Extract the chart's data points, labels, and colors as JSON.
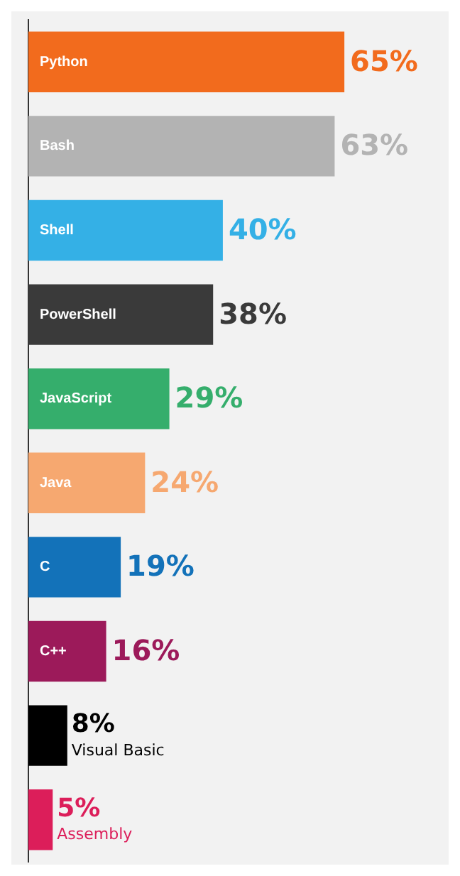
{
  "chart_data": {
    "type": "bar",
    "orientation": "horizontal",
    "categories": [
      "Python",
      "Bash",
      "Shell",
      "PowerShell",
      "JavaScript",
      "Java",
      "C",
      "C++",
      "Visual Basic",
      "Assembly"
    ],
    "values": [
      65,
      63,
      40,
      38,
      29,
      24,
      19,
      16,
      8,
      5
    ],
    "value_labels": [
      "65%",
      "63%",
      "40%",
      "38%",
      "29%",
      "24%",
      "19%",
      "16%",
      "8%",
      "5%"
    ],
    "colors": [
      "#f26b1d",
      "#b3b3b3",
      "#34b0e6",
      "#3a3a3a",
      "#35ae6c",
      "#f6a870",
      "#1372b9",
      "#9c1a5a",
      "#000000",
      "#dc1e5a"
    ],
    "grid": false,
    "legend": false
  }
}
